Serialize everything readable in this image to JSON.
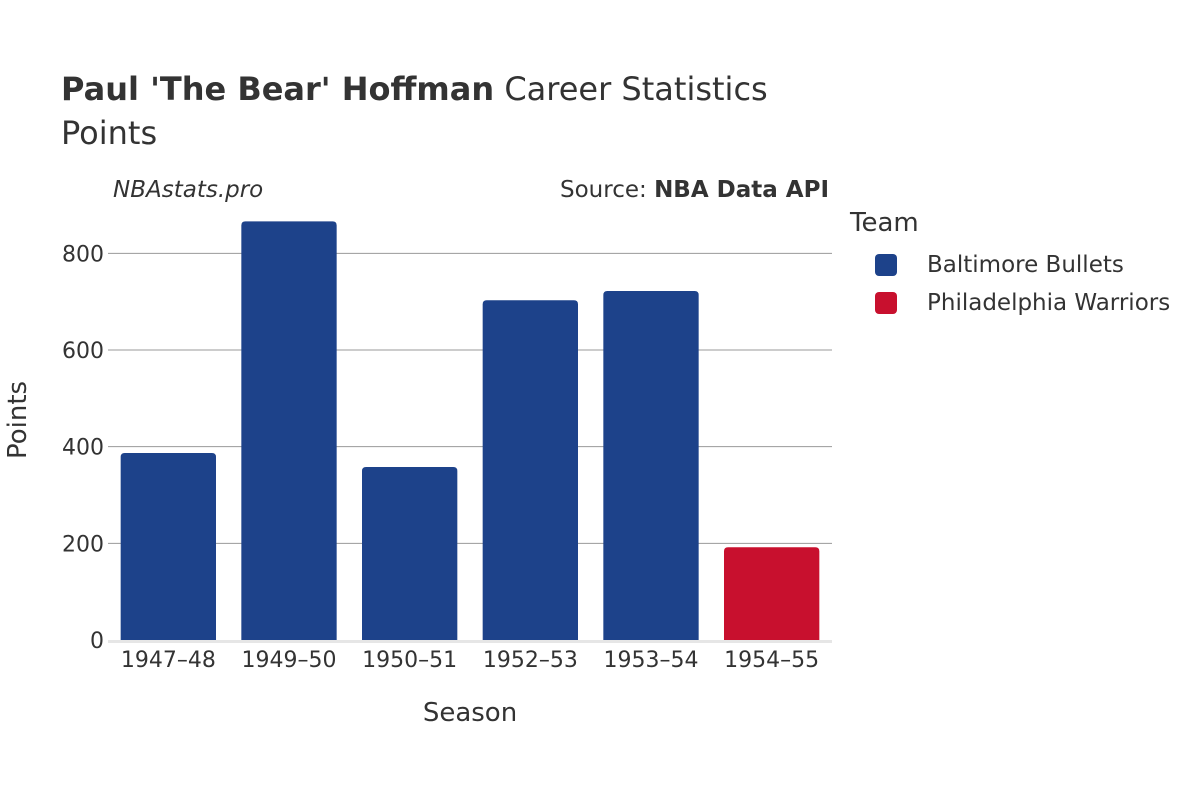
{
  "header": {
    "title_bold": "Paul 'The Bear' Hoffman",
    "title_rest": "Career Statistics",
    "subtitle": "Points",
    "watermark": "NBAstats.pro",
    "source_prefix": "Source: ",
    "source_bold": "NBA Data API"
  },
  "legend": {
    "title": "Team",
    "items": [
      {
        "label": "Baltimore Bullets",
        "color": "#1d428a"
      },
      {
        "label": "Philadelphia Warriors",
        "color": "#c8102e"
      }
    ]
  },
  "chart_data": {
    "type": "bar",
    "title": "Paul 'The Bear' Hoffman Career Statistics",
    "subtitle": "Points",
    "xlabel": "Season",
    "ylabel": "Points",
    "ylim": [
      0,
      900
    ],
    "yticks": [
      0,
      200,
      400,
      600,
      800
    ],
    "grid": true,
    "legend_position": "right",
    "categories": [
      "1947–48",
      "1949–50",
      "1950–51",
      "1952–53",
      "1953–54",
      "1954–55"
    ],
    "series": [
      {
        "name": "Baltimore Bullets",
        "color": "#1d428a",
        "values": [
          387,
          866,
          358,
          703,
          722,
          null
        ]
      },
      {
        "name": "Philadelphia Warriors",
        "color": "#c8102e",
        "values": [
          null,
          null,
          null,
          null,
          null,
          192
        ]
      }
    ]
  }
}
